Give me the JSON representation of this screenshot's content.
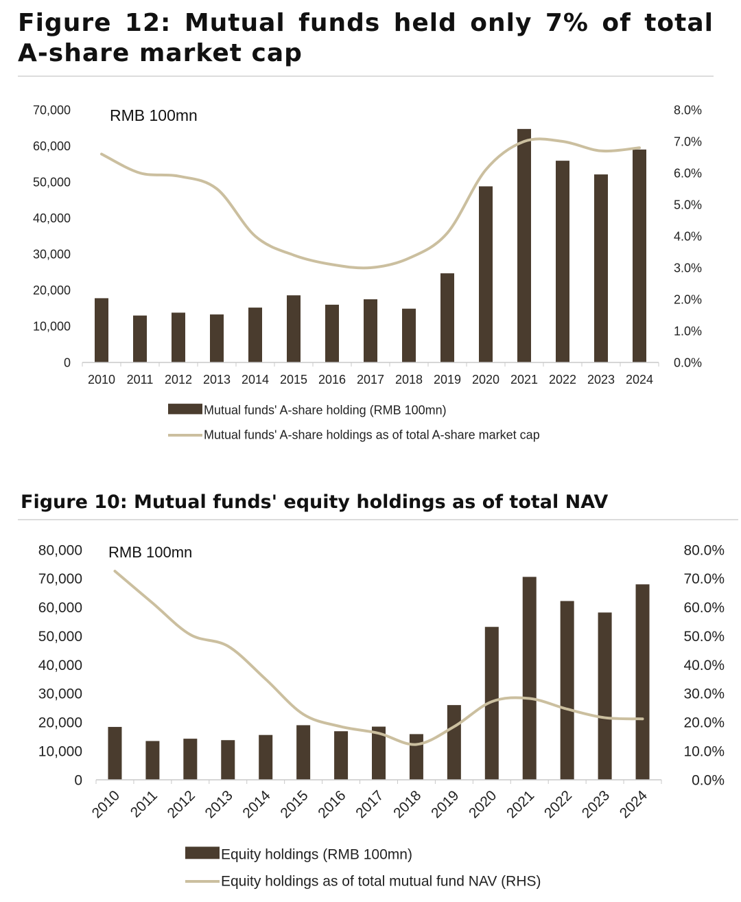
{
  "chart_data": [
    {
      "type": "bar",
      "title": "Figure 12: Mutual funds held only 7% of total A-share market cap",
      "unit_label": "RMB 100mn",
      "categories": [
        "2010",
        "2011",
        "2012",
        "2013",
        "2014",
        "2015",
        "2016",
        "2017",
        "2018",
        "2019",
        "2020",
        "2021",
        "2022",
        "2023",
        "2024"
      ],
      "series": [
        {
          "name": "Mutual funds' A-share holding (RMB 100mn)",
          "kind": "bar",
          "axis": "left",
          "color": "#4a3c2e",
          "values": [
            17800,
            13000,
            13800,
            13300,
            15200,
            18600,
            16000,
            17500,
            14900,
            24700,
            48800,
            64700,
            55900,
            52100,
            59000
          ]
        },
        {
          "name": "Mutual funds' A-share holdings as of total A-share market cap",
          "kind": "line",
          "axis": "right",
          "color": "#cbbf9f",
          "values": [
            6.6,
            6.0,
            5.9,
            5.5,
            4.0,
            3.4,
            3.1,
            3.0,
            3.3,
            4.1,
            6.1,
            7.0,
            7.0,
            6.7,
            6.8
          ]
        }
      ],
      "y_left": {
        "min": 0,
        "max": 70000,
        "ticks": [
          "0",
          "10,000",
          "20,000",
          "30,000",
          "40,000",
          "50,000",
          "60,000",
          "70,000"
        ]
      },
      "y_right": {
        "min": 0,
        "max": 8,
        "ticks": [
          "0.0%",
          "1.0%",
          "2.0%",
          "3.0%",
          "4.0%",
          "5.0%",
          "6.0%",
          "7.0%",
          "8.0%"
        ]
      },
      "legend_position": "bottom"
    },
    {
      "type": "bar",
      "title": "Figure 10: Mutual funds' equity holdings as of total NAV",
      "unit_label": "RMB 100mn",
      "categories": [
        "2010",
        "2011",
        "2012",
        "2013",
        "2014",
        "2015",
        "2016",
        "2017",
        "2018",
        "2019",
        "2020",
        "2021",
        "2022",
        "2023",
        "2024"
      ],
      "series": [
        {
          "name": "Equity holdings (RMB 100mn)",
          "kind": "bar",
          "axis": "left",
          "color": "#4a3c2e",
          "values": [
            18400,
            13500,
            14300,
            13800,
            15600,
            19000,
            16900,
            18500,
            15900,
            26000,
            53200,
            70600,
            62200,
            58200,
            68000
          ]
        },
        {
          "name": "Equity holdings as of total mutual fund NAV (RHS)",
          "kind": "line",
          "axis": "right",
          "color": "#cbbf9f",
          "values": [
            72.6,
            61.5,
            50.5,
            46.5,
            35.0,
            22.8,
            18.5,
            16.2,
            12.3,
            18.5,
            27.2,
            28.3,
            24.6,
            21.6,
            21.2
          ]
        }
      ],
      "y_left": {
        "min": 0,
        "max": 80000,
        "ticks": [
          "0",
          "10,000",
          "20,000",
          "30,000",
          "40,000",
          "50,000",
          "60,000",
          "70,000",
          "80,000"
        ]
      },
      "y_right": {
        "min": 0,
        "max": 80,
        "ticks": [
          "0.0%",
          "10.0%",
          "20.0%",
          "30.0%",
          "40.0%",
          "50.0%",
          "60.0%",
          "70.0%",
          "80.0%"
        ]
      },
      "legend_position": "bottom"
    }
  ]
}
